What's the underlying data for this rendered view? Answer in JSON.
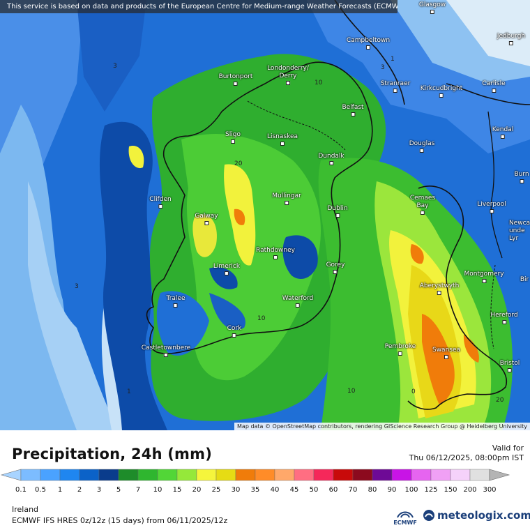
{
  "banner": "This service is based on data and products of the European Centre for Medium-range Weather Forecasts (ECMWF)",
  "attribution": "Map data © OpenStreetMap contributors, rendering GIScience Research Group @ Heidelberg University",
  "cities": [
    {
      "name": "Glasgow",
      "label": "Glasgow"
    },
    {
      "name": "Jedburgh",
      "label": "Jedburgh"
    },
    {
      "name": "Campbeltown",
      "label": "Campbeltown"
    },
    {
      "name": "Burtonport",
      "label": "Burtonport"
    },
    {
      "name": "Londonderry",
      "label": "Londonderry/\nDerry"
    },
    {
      "name": "Stranraer",
      "label": "Stranraer"
    },
    {
      "name": "Kirkcudbright",
      "label": "Kirkcudbright"
    },
    {
      "name": "Carlisle",
      "label": "Carlisle"
    },
    {
      "name": "Belfast",
      "label": "Belfast"
    },
    {
      "name": "Kendal",
      "label": "Kendal"
    },
    {
      "name": "Sligo",
      "label": "Sligo"
    },
    {
      "name": "Lisnaskea",
      "label": "Lisnaskea"
    },
    {
      "name": "Douglas",
      "label": "Douglas"
    },
    {
      "name": "Dundalk",
      "label": "Dundalk"
    },
    {
      "name": "Burnley",
      "label": "Burn"
    },
    {
      "name": "Mullingar",
      "label": "Mullingar"
    },
    {
      "name": "Clifden",
      "label": "Clifden"
    },
    {
      "name": "Cemaes Bay",
      "label": "Cemaes\nBay"
    },
    {
      "name": "Liverpool",
      "label": "Liverpool"
    },
    {
      "name": "Dublin",
      "label": "Dublin"
    },
    {
      "name": "Galway",
      "label": "Galway"
    },
    {
      "name": "Newcastle-under-Lyme",
      "label": "Newca\nunde\nLyr"
    },
    {
      "name": "Rathdowney",
      "label": "Rathdowney"
    },
    {
      "name": "Limerick",
      "label": "Limerick"
    },
    {
      "name": "Gorey",
      "label": "Gorey"
    },
    {
      "name": "Montgomery",
      "label": "Montgomery"
    },
    {
      "name": "Birmingham",
      "label": "Bir"
    },
    {
      "name": "Aberystwyth",
      "label": "Aberystwyth"
    },
    {
      "name": "Tralee",
      "label": "Tralee"
    },
    {
      "name": "Waterford",
      "label": "Waterford"
    },
    {
      "name": "Hereford",
      "label": "Hereford"
    },
    {
      "name": "Cork",
      "label": "Cork"
    },
    {
      "name": "Pembroke",
      "label": "Pembroke"
    },
    {
      "name": "Castletownbere",
      "label": "Castletownbere"
    },
    {
      "name": "Swansea",
      "label": "Swansea"
    },
    {
      "name": "Bristol",
      "label": "Bristol"
    }
  ],
  "contour_labels": [
    "3",
    "1",
    "3",
    "10",
    "20",
    "3",
    "10",
    "1",
    "10",
    "0",
    "20"
  ],
  "legend": {
    "title": "Precipitation, 24h (mm)",
    "valid_label": "Valid for",
    "valid_time": "Thu 06/12/2025, 08:00pm IST",
    "region": "Ireland",
    "model": "ECMWF IFS HRES 0z/12z (15 days) from 06/11/2025/12z",
    "ecmwf_logo_text": "ECMWF",
    "brand": "meteologix.com",
    "ticks": [
      "0.1",
      "0.5",
      "1",
      "2",
      "3",
      "5",
      "7",
      "10",
      "15",
      "20",
      "25",
      "30",
      "35",
      "40",
      "45",
      "50",
      "60",
      "70",
      "80",
      "90",
      "100",
      "125",
      "150",
      "200",
      "300"
    ],
    "colors": [
      "#a8d4ff",
      "#7cbcff",
      "#4aa2ff",
      "#1f86f0",
      "#0b62c8",
      "#0a3c8c",
      "#1e8c2a",
      "#2fb62f",
      "#52d637",
      "#95e83a",
      "#f5f53c",
      "#e6dc14",
      "#f07c0a",
      "#ff8c28",
      "#ffa86a",
      "#ff6e82",
      "#f5285a",
      "#c80a0a",
      "#8c0a1e",
      "#6e0a96",
      "#c814e6",
      "#e664f0",
      "#f0a0f5",
      "#f5d2fa",
      "#e0e0e0",
      "#b4b4b4"
    ]
  }
}
